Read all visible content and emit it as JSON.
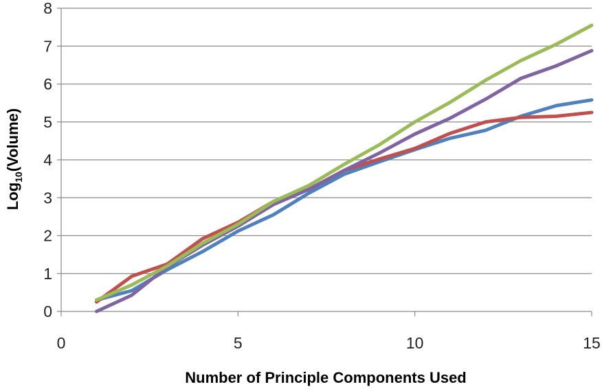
{
  "chart_data": {
    "type": "line",
    "title": "",
    "xlabel": "Number of Principle Components Used",
    "ylabel": {
      "prefix": "Log",
      "subscript": "10",
      "suffix": "(Volume)"
    },
    "xlim": [
      0,
      15
    ],
    "ylim": [
      0,
      8
    ],
    "xticks": [
      0,
      5,
      10,
      15
    ],
    "yticks": [
      0,
      1,
      2,
      3,
      4,
      5,
      6,
      7,
      8
    ],
    "grid": "horizontal",
    "legend": "none",
    "x": [
      1,
      2,
      3,
      4,
      5,
      6,
      7,
      8,
      9,
      10,
      11,
      12,
      13,
      14,
      15
    ],
    "series": [
      {
        "color": "#4F81BD",
        "values": [
          0.3,
          0.55,
          1.1,
          1.58,
          2.12,
          2.55,
          3.12,
          3.62,
          3.95,
          4.27,
          4.57,
          4.78,
          5.15,
          5.43,
          5.58
        ]
      },
      {
        "color": "#C0504D",
        "values": [
          0.25,
          0.93,
          1.25,
          1.92,
          2.35,
          2.9,
          3.22,
          3.72,
          4.02,
          4.3,
          4.7,
          5.0,
          5.12,
          5.15,
          5.25
        ]
      },
      {
        "color": "#8064A2",
        "values": [
          0.0,
          0.43,
          1.18,
          1.75,
          2.25,
          2.82,
          3.22,
          3.72,
          4.18,
          4.68,
          5.1,
          5.6,
          6.15,
          6.48,
          6.88
        ]
      },
      {
        "color": "#9BBB59",
        "values": [
          0.3,
          0.7,
          1.2,
          1.8,
          2.3,
          2.9,
          3.32,
          3.88,
          4.4,
          5.0,
          5.52,
          6.1,
          6.62,
          7.05,
          7.55
        ]
      }
    ]
  }
}
